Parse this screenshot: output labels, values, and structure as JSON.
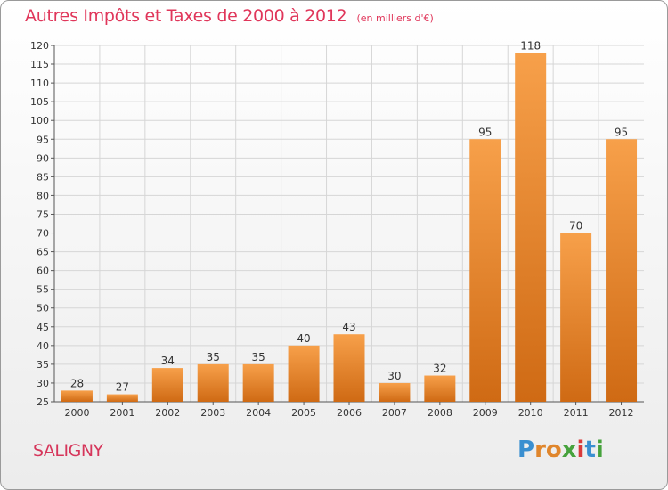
{
  "header": {
    "title": "Autres Impôts et Taxes de 2000 à 2012",
    "subtitle": "(en milliers d'€)"
  },
  "footer": {
    "commune": "SALIGNY",
    "brand": "Proxiti"
  },
  "colors": {
    "bar_light": "#f7a04a",
    "bar_dark": "#cf6a14",
    "title": "#e0365a",
    "grid": "#d6d6d6"
  },
  "chart_data": {
    "type": "bar",
    "title": "Autres Impôts et Taxes de 2000 à 2012",
    "subtitle": "(en milliers d'€)",
    "categories": [
      "2000",
      "2001",
      "2002",
      "2003",
      "2004",
      "2005",
      "2006",
      "2007",
      "2008",
      "2009",
      "2010",
      "2011",
      "2012"
    ],
    "values": [
      28,
      27,
      34,
      35,
      35,
      40,
      43,
      30,
      32,
      95,
      118,
      70,
      95
    ],
    "ylim": [
      25,
      120
    ],
    "yticks": [
      25,
      30,
      35,
      40,
      45,
      50,
      55,
      60,
      65,
      70,
      75,
      80,
      85,
      90,
      95,
      100,
      105,
      110,
      115,
      120
    ],
    "grid": true,
    "data_labels": true
  }
}
